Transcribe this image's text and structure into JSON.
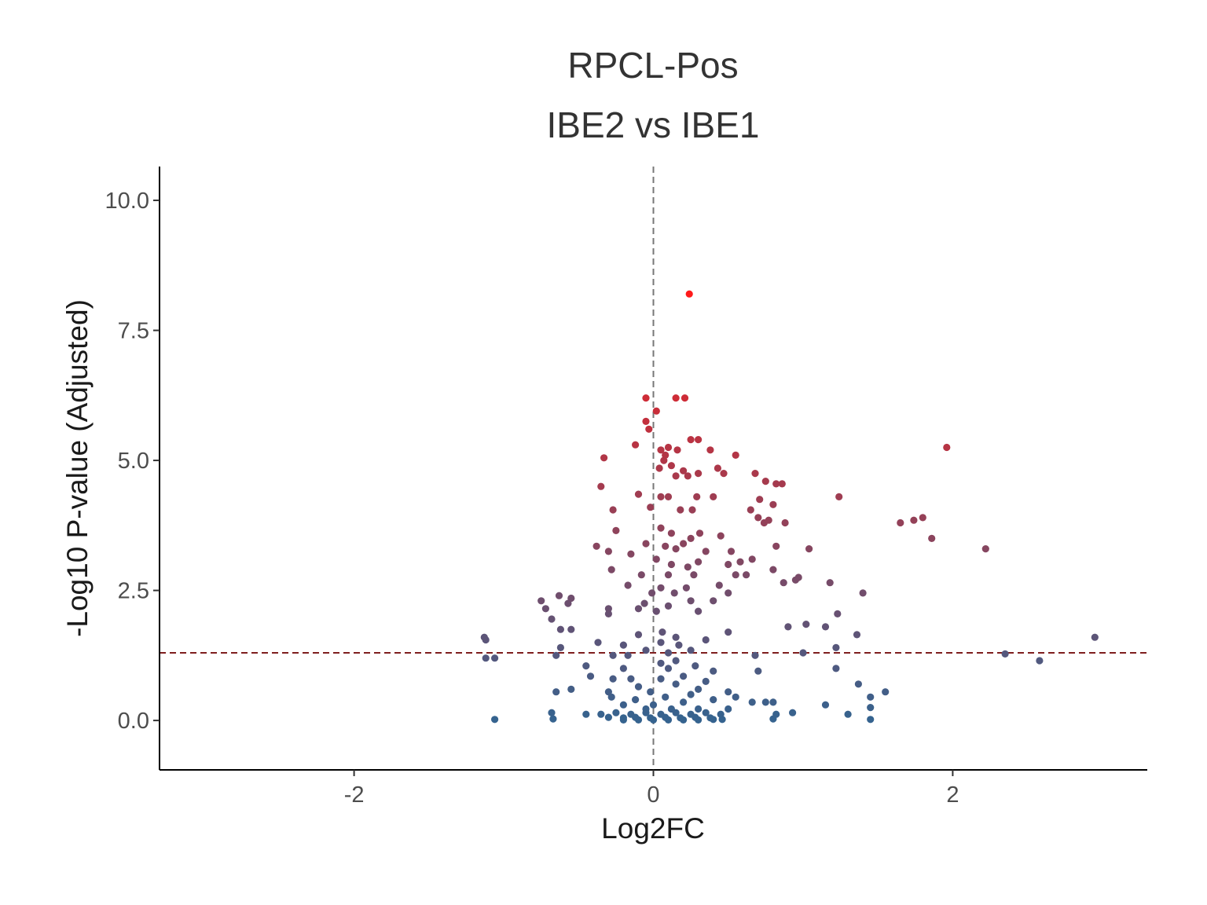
{
  "chart_data": {
    "type": "scatter",
    "title": "RPCL-Pos",
    "subtitle": "IBE2 vs IBE1",
    "xlabel": "Log2FC",
    "ylabel": "-Log10 P-value (Adjusted)",
    "xlim": [
      -3.3,
      3.3
    ],
    "ylim": [
      -0.95,
      10.65
    ],
    "x_ticks": [
      -2,
      0,
      2
    ],
    "x_tick_labels": [
      "-2",
      "0",
      "2"
    ],
    "y_ticks": [
      0,
      2.5,
      5,
      7.5,
      10
    ],
    "y_tick_labels": [
      "0.0",
      "2.5",
      "5.0",
      "7.5",
      "10.0"
    ],
    "vline": 0,
    "hline": 1.3,
    "grid": false,
    "legend": "none",
    "color_low": "#35638f",
    "color_high": "#ff1a1a",
    "hline_color": "#7f1f1f",
    "points": [
      [
        0.24,
        8.2
      ],
      [
        -0.05,
        6.2
      ],
      [
        0.15,
        6.2
      ],
      [
        0.21,
        6.2
      ],
      [
        0.02,
        5.95
      ],
      [
        -0.05,
        5.75
      ],
      [
        -0.03,
        5.6
      ],
      [
        0.3,
        5.4
      ],
      [
        0.25,
        5.4
      ],
      [
        1.96,
        5.25
      ],
      [
        0.1,
        5.25
      ],
      [
        0.05,
        5.2
      ],
      [
        0.16,
        5.2
      ],
      [
        0.08,
        5.1
      ],
      [
        -0.12,
        5.3
      ],
      [
        0.38,
        5.2
      ],
      [
        0.55,
        5.1
      ],
      [
        -0.33,
        5.05
      ],
      [
        0.07,
        5.0
      ],
      [
        0.12,
        4.9
      ],
      [
        0.04,
        4.85
      ],
      [
        0.2,
        4.8
      ],
      [
        0.3,
        4.75
      ],
      [
        0.43,
        4.85
      ],
      [
        0.47,
        4.75
      ],
      [
        0.68,
        4.75
      ],
      [
        0.75,
        4.6
      ],
      [
        -0.35,
        4.5
      ],
      [
        0.82,
        4.55
      ],
      [
        0.86,
        4.55
      ],
      [
        0.15,
        4.7
      ],
      [
        0.23,
        4.7
      ],
      [
        -0.1,
        4.35
      ],
      [
        0.05,
        4.3
      ],
      [
        0.1,
        4.3
      ],
      [
        0.29,
        4.3
      ],
      [
        0.4,
        4.3
      ],
      [
        1.24,
        4.3
      ],
      [
        -0.02,
        4.1
      ],
      [
        0.18,
        4.05
      ],
      [
        0.65,
        4.05
      ],
      [
        0.71,
        4.25
      ],
      [
        0.8,
        4.15
      ],
      [
        -0.27,
        4.05
      ],
      [
        0.26,
        4.05
      ],
      [
        0.7,
        3.9
      ],
      [
        0.74,
        3.8
      ],
      [
        0.77,
        3.85
      ],
      [
        0.88,
        3.8
      ],
      [
        1.65,
        3.8
      ],
      [
        1.74,
        3.85
      ],
      [
        1.8,
        3.9
      ],
      [
        -0.25,
        3.65
      ],
      [
        0.05,
        3.7
      ],
      [
        0.12,
        3.6
      ],
      [
        0.25,
        3.5
      ],
      [
        0.31,
        3.6
      ],
      [
        0.45,
        3.55
      ],
      [
        1.86,
        3.5
      ],
      [
        -0.05,
        3.4
      ],
      [
        0.08,
        3.35
      ],
      [
        0.15,
        3.3
      ],
      [
        0.2,
        3.4
      ],
      [
        0.35,
        3.25
      ],
      [
        -0.38,
        3.35
      ],
      [
        -0.3,
        3.25
      ],
      [
        0.52,
        3.25
      ],
      [
        0.82,
        3.35
      ],
      [
        1.04,
        3.3
      ],
      [
        2.22,
        3.3
      ],
      [
        -0.15,
        3.2
      ],
      [
        0.02,
        3.1
      ],
      [
        0.12,
        3.0
      ],
      [
        0.23,
        2.95
      ],
      [
        0.3,
        3.05
      ],
      [
        0.5,
        3.0
      ],
      [
        0.58,
        3.05
      ],
      [
        0.66,
        3.1
      ],
      [
        -0.28,
        2.9
      ],
      [
        -0.08,
        2.8
      ],
      [
        0.1,
        2.8
      ],
      [
        0.27,
        2.8
      ],
      [
        0.55,
        2.8
      ],
      [
        0.62,
        2.8
      ],
      [
        0.8,
        2.9
      ],
      [
        0.95,
        2.7
      ],
      [
        0.97,
        2.75
      ],
      [
        0.87,
        2.65
      ],
      [
        1.18,
        2.65
      ],
      [
        -0.17,
        2.6
      ],
      [
        0.05,
        2.55
      ],
      [
        0.22,
        2.55
      ],
      [
        0.44,
        2.6
      ],
      [
        -0.01,
        2.45
      ],
      [
        0.14,
        2.45
      ],
      [
        0.5,
        2.45
      ],
      [
        1.4,
        2.45
      ],
      [
        -0.75,
        2.3
      ],
      [
        -0.63,
        2.4
      ],
      [
        -0.55,
        2.35
      ],
      [
        -0.57,
        2.25
      ],
      [
        -0.06,
        2.25
      ],
      [
        0.1,
        2.2
      ],
      [
        0.25,
        2.3
      ],
      [
        0.4,
        2.3
      ],
      [
        -0.72,
        2.15
      ],
      [
        -0.3,
        2.15
      ],
      [
        -0.1,
        2.15
      ],
      [
        0.02,
        2.1
      ],
      [
        0.3,
        2.1
      ],
      [
        -0.3,
        2.05
      ],
      [
        -0.68,
        1.95
      ],
      [
        0.9,
        1.8
      ],
      [
        1.23,
        2.05
      ],
      [
        1.02,
        1.85
      ],
      [
        1.15,
        1.8
      ],
      [
        -0.62,
        1.75
      ],
      [
        -0.55,
        1.75
      ],
      [
        0.06,
        1.7
      ],
      [
        0.15,
        1.6
      ],
      [
        -0.1,
        1.65
      ],
      [
        0.5,
        1.7
      ],
      [
        1.36,
        1.65
      ],
      [
        2.95,
        1.6
      ],
      [
        -1.13,
        1.6
      ],
      [
        -1.12,
        1.55
      ],
      [
        -0.37,
        1.5
      ],
      [
        -0.2,
        1.45
      ],
      [
        0.05,
        1.5
      ],
      [
        0.17,
        1.45
      ],
      [
        0.35,
        1.55
      ],
      [
        -0.62,
        1.4
      ],
      [
        1.22,
        1.4
      ],
      [
        -0.05,
        1.35
      ],
      [
        0.1,
        1.3
      ],
      [
        0.25,
        1.35
      ],
      [
        1.0,
        1.3
      ],
      [
        2.35,
        1.28
      ],
      [
        -0.65,
        1.25
      ],
      [
        -1.06,
        1.2
      ],
      [
        -0.27,
        1.25
      ],
      [
        -0.17,
        1.25
      ],
      [
        0.68,
        1.25
      ],
      [
        2.58,
        1.15
      ],
      [
        -1.12,
        1.2
      ],
      [
        -0.45,
        1.05
      ],
      [
        0.05,
        1.1
      ],
      [
        0.15,
        1.15
      ],
      [
        0.28,
        1.05
      ],
      [
        -0.2,
        1.0
      ],
      [
        0.1,
        1.0
      ],
      [
        0.4,
        0.95
      ],
      [
        -0.42,
        0.85
      ],
      [
        0.2,
        0.85
      ],
      [
        1.22,
        1.0
      ],
      [
        0.7,
        0.95
      ],
      [
        -0.27,
        0.8
      ],
      [
        -0.15,
        0.8
      ],
      [
        0.05,
        0.8
      ],
      [
        0.35,
        0.75
      ],
      [
        -0.1,
        0.65
      ],
      [
        0.15,
        0.7
      ],
      [
        0.3,
        0.6
      ],
      [
        -0.65,
        0.55
      ],
      [
        -0.55,
        0.6
      ],
      [
        -0.3,
        0.55
      ],
      [
        -0.02,
        0.55
      ],
      [
        0.25,
        0.5
      ],
      [
        0.5,
        0.55
      ],
      [
        1.37,
        0.7
      ],
      [
        1.55,
        0.55
      ],
      [
        -0.28,
        0.45
      ],
      [
        -0.12,
        0.4
      ],
      [
        0.08,
        0.45
      ],
      [
        0.4,
        0.4
      ],
      [
        0.55,
        0.45
      ],
      [
        1.45,
        0.45
      ],
      [
        -0.2,
        0.3
      ],
      [
        0.0,
        0.3
      ],
      [
        0.2,
        0.35
      ],
      [
        0.66,
        0.35
      ],
      [
        0.75,
        0.35
      ],
      [
        0.8,
        0.35
      ],
      [
        1.15,
        0.3
      ],
      [
        1.45,
        0.25
      ],
      [
        -0.05,
        0.22
      ],
      [
        0.12,
        0.22
      ],
      [
        0.3,
        0.22
      ],
      [
        0.5,
        0.22
      ],
      [
        -0.68,
        0.15
      ],
      [
        -0.45,
        0.12
      ],
      [
        -0.35,
        0.12
      ],
      [
        -0.25,
        0.15
      ],
      [
        -0.15,
        0.12
      ],
      [
        -0.05,
        0.15
      ],
      [
        0.05,
        0.12
      ],
      [
        0.15,
        0.15
      ],
      [
        0.25,
        0.12
      ],
      [
        0.35,
        0.15
      ],
      [
        0.45,
        0.12
      ],
      [
        0.82,
        0.12
      ],
      [
        0.93,
        0.15
      ],
      [
        1.3,
        0.12
      ],
      [
        -0.3,
        0.06
      ],
      [
        -0.2,
        0.05
      ],
      [
        -0.12,
        0.06
      ],
      [
        -0.02,
        0.05
      ],
      [
        0.08,
        0.06
      ],
      [
        0.18,
        0.05
      ],
      [
        0.28,
        0.06
      ],
      [
        0.38,
        0.05
      ],
      [
        -1.06,
        0.02
      ],
      [
        -0.67,
        0.03
      ],
      [
        -0.2,
        0.01
      ],
      [
        -0.1,
        0.01
      ],
      [
        0.0,
        0.01
      ],
      [
        0.1,
        0.01
      ],
      [
        0.2,
        0.01
      ],
      [
        0.3,
        0.01
      ],
      [
        0.4,
        0.02
      ],
      [
        0.46,
        0.02
      ],
      [
        0.8,
        0.03
      ],
      [
        1.45,
        0.02
      ]
    ]
  }
}
